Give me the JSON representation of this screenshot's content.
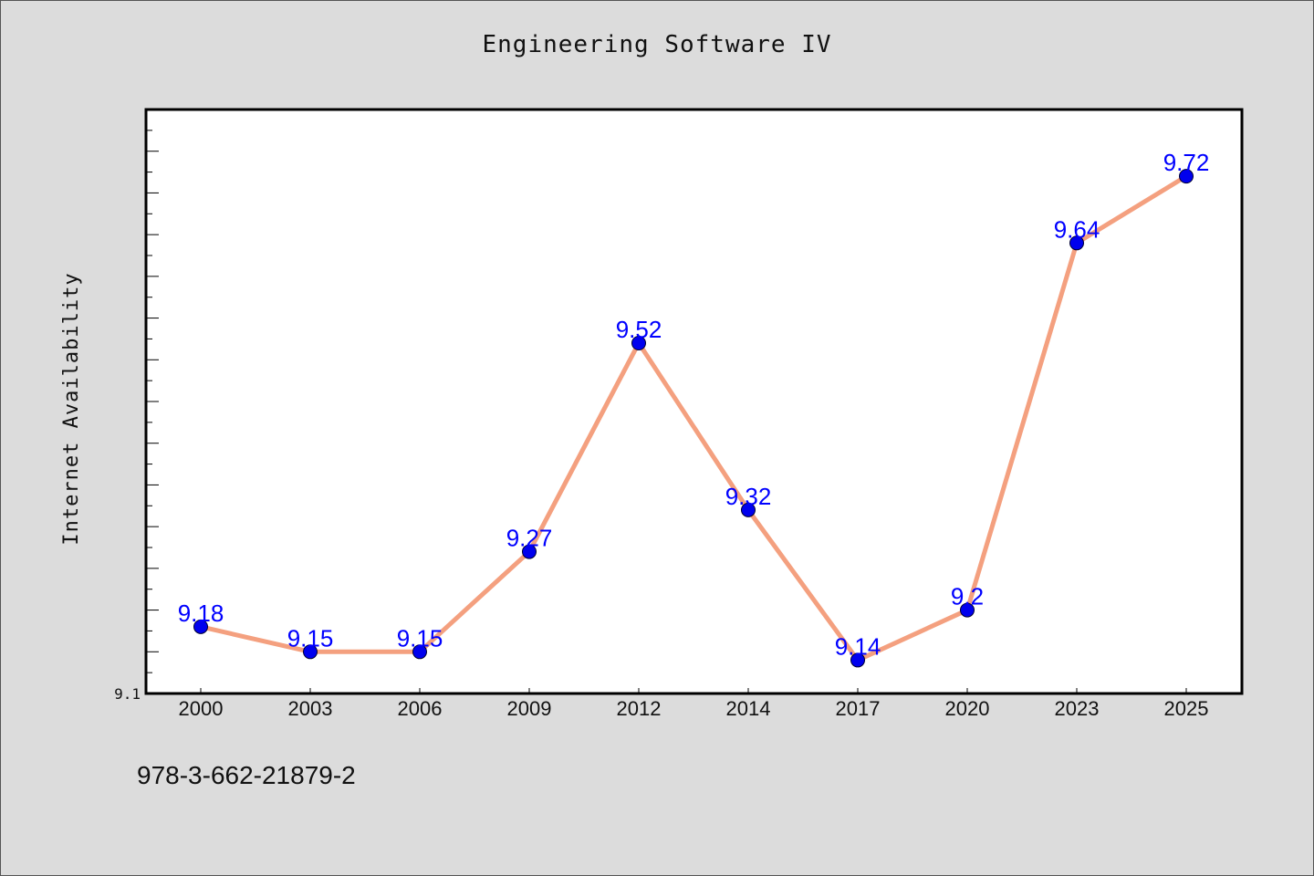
{
  "chart_data": {
    "type": "line",
    "title": "Engineering Software IV",
    "xlabel": "",
    "ylabel": "Internet Availability",
    "categories": [
      "2000",
      "2003",
      "2006",
      "2009",
      "2012",
      "2014",
      "2017",
      "2020",
      "2023",
      "2025"
    ],
    "series": [
      {
        "values": [
          9.18,
          9.15,
          9.15,
          9.27,
          9.52,
          9.32,
          9.14,
          9.2,
          9.64,
          9.72
        ],
        "line_color": "#f4a07f",
        "marker_color": "#0000ee"
      }
    ],
    "data_labels": [
      "9.18",
      "9.15",
      "9.15",
      "9.27",
      "9.52",
      "9.32",
      "9.14",
      "9.2",
      "9.64",
      "9.72"
    ],
    "ylim": [
      9.1,
      9.8
    ],
    "yticks_labeled": [
      "9.1"
    ],
    "grid": false,
    "legend": "none",
    "label_color": "#0000ff"
  },
  "footer": {
    "code": "978-3-662-21879-2"
  }
}
